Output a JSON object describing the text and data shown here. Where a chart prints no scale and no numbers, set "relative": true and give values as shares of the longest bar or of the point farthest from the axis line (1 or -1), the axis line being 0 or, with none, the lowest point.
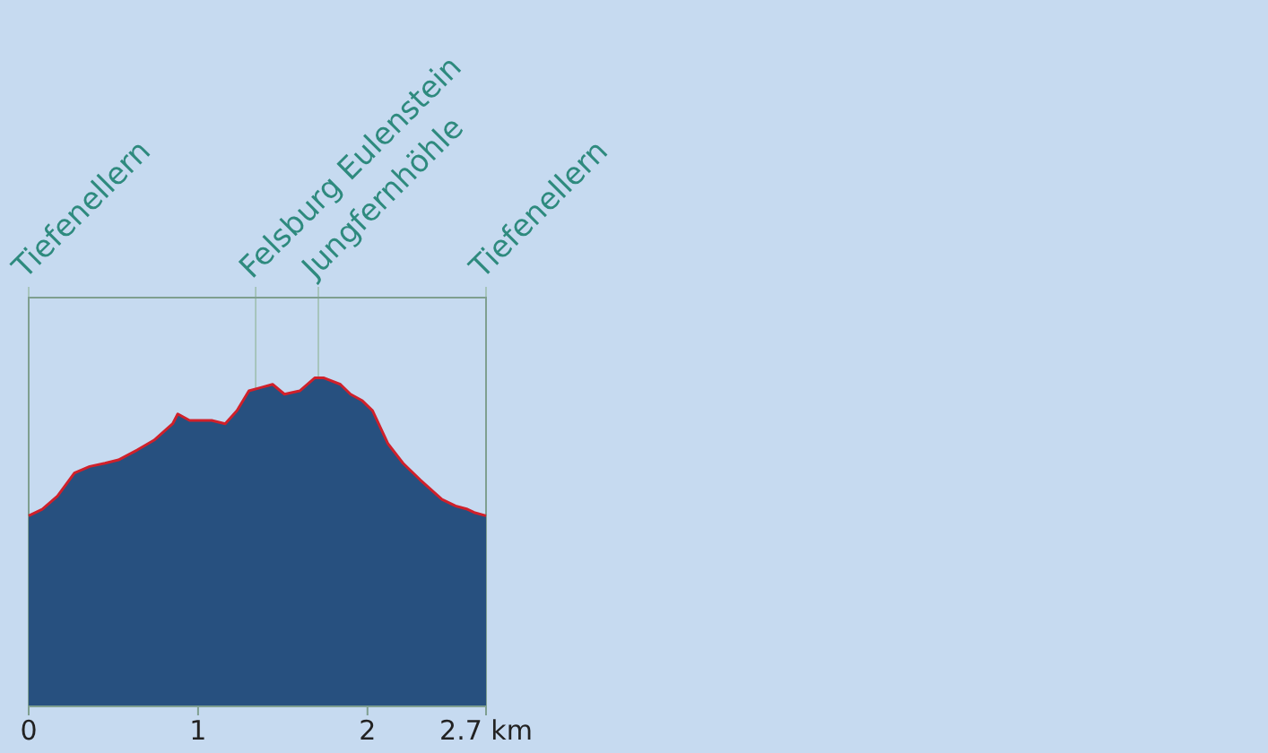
{
  "chart_data": {
    "type": "area",
    "relative": true,
    "x": [
      0,
      0.08,
      0.17,
      0.27,
      0.36,
      0.45,
      0.53,
      0.64,
      0.74,
      0.85,
      0.88,
      0.95,
      1.08,
      1.16,
      1.23,
      1.3,
      1.37,
      1.44,
      1.51,
      1.6,
      1.69,
      1.74,
      1.84,
      1.9,
      1.97,
      2.03,
      2.12,
      2.21,
      2.31,
      2.44,
      2.52,
      2.59,
      2.63,
      2.7
    ],
    "series": [
      {
        "color": "#27507f",
        "values": [
          0.58,
          0.6,
          0.64,
          0.71,
          0.73,
          0.74,
          0.75,
          0.78,
          0.81,
          0.86,
          0.89,
          0.87,
          0.87,
          0.86,
          0.9,
          0.96,
          0.97,
          0.98,
          0.95,
          0.96,
          1,
          1,
          0.98,
          0.95,
          0.93,
          0.9,
          0.8,
          0.74,
          0.69,
          0.63,
          0.61,
          0.6,
          0.59,
          0.58
        ]
      },
      {
        "type": "line",
        "color": "#d0202a",
        "values": [
          0.58,
          0.6,
          0.64,
          0.71,
          0.73,
          0.74,
          0.75,
          0.78,
          0.81,
          0.86,
          0.89,
          0.87,
          0.87,
          0.86,
          0.9,
          0.96,
          0.97,
          0.98,
          0.95,
          0.96,
          1,
          1,
          0.98,
          0.95,
          0.93,
          0.9,
          0.8,
          0.74,
          0.69,
          0.63,
          0.61,
          0.6,
          0.59,
          0.58
        ]
      }
    ],
    "xlim": [
      0,
      2.7
    ],
    "xticks": [
      0,
      1,
      2,
      {
        "value": 2.7,
        "label": "2.7 km"
      }
    ],
    "ref_lines": [
      {
        "axis": "x",
        "value": 0,
        "label": "Tiefenellern"
      },
      {
        "axis": "x",
        "value": 1.34,
        "label": "Felsburg Eulenstein"
      },
      {
        "axis": "x",
        "value": 1.71,
        "label": "Jungfernhöhle"
      },
      {
        "axis": "x",
        "value": 2.7,
        "label": "Tiefenellern"
      }
    ]
  }
}
